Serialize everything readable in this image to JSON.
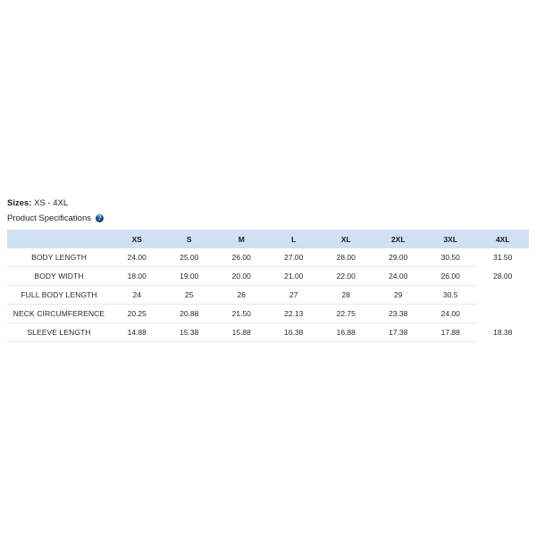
{
  "sizes": {
    "label": "Sizes:",
    "value": "XS - 4XL"
  },
  "spec_title": "Product Specifications",
  "help_icon": "question-circle-icon",
  "accent_color": "#cfe1f3",
  "table": {
    "columns": [
      "",
      "XS",
      "S",
      "M",
      "L",
      "XL",
      "2XL",
      "3XL",
      "4XL"
    ],
    "rows": [
      {
        "label": "BODY LENGTH",
        "values": [
          "24.00",
          "25.00",
          "26.00",
          "27.00",
          "28.00",
          "29.00",
          "30.50",
          "31.50"
        ]
      },
      {
        "label": "BODY WIDTH",
        "values": [
          "18.00",
          "19.00",
          "20.00",
          "21.00",
          "22.00",
          "24.00",
          "26.00",
          "28.00"
        ]
      },
      {
        "label": "FULL BODY LENGTH",
        "values": [
          "24",
          "25",
          "26",
          "27",
          "28",
          "29",
          "30.5",
          ""
        ]
      },
      {
        "label": "NECK CIRCUMFERENCE",
        "values": [
          "20.25",
          "20.88",
          "21.50",
          "22.13",
          "22.75",
          "23.38",
          "24.00",
          ""
        ]
      },
      {
        "label": "SLEEVE LENGTH",
        "values": [
          "14.88",
          "15.38",
          "15.88",
          "16.38",
          "16.88",
          "17.38",
          "17.88",
          "18.38"
        ]
      }
    ]
  }
}
